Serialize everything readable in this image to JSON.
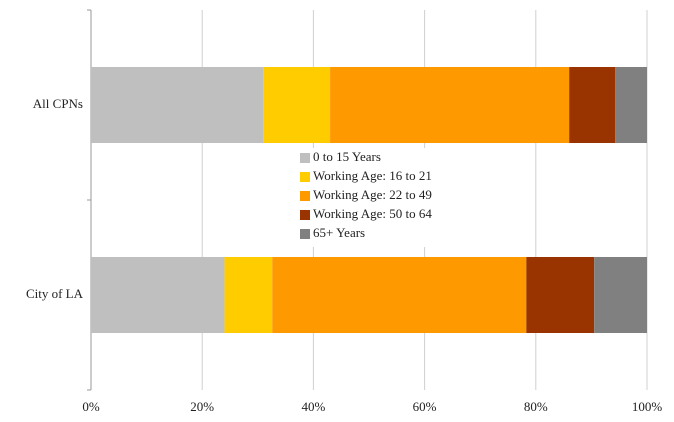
{
  "chart_data": {
    "type": "stacked-barh",
    "categories": [
      "All CPNs",
      "City of LA"
    ],
    "series": [
      {
        "name": "0 to 15 Years",
        "color": "#bfbfbf",
        "values": [
          31,
          24
        ]
      },
      {
        "name": "Working Age: 16 to 21",
        "color": "#ffcc00",
        "values": [
          12,
          8.6
        ]
      },
      {
        "name": "Working Age: 22 to 49",
        "color": "#ff9900",
        "values": [
          43,
          45.7
        ]
      },
      {
        "name": "Working Age: 50 to 64",
        "color": "#993300",
        "values": [
          8.3,
          12.2
        ]
      },
      {
        "name": "65+ Years",
        "color": "#808080",
        "values": [
          5.7,
          9.5
        ]
      }
    ],
    "xlim": [
      0,
      100
    ],
    "xticks": [
      {
        "value": 0,
        "label": "0%"
      },
      {
        "value": 20,
        "label": "20%"
      },
      {
        "value": 40,
        "label": "40%"
      },
      {
        "value": 60,
        "label": "60%"
      },
      {
        "value": 80,
        "label": "80%"
      },
      {
        "value": 100,
        "label": "100%"
      }
    ],
    "grid": true,
    "legend": "center"
  }
}
